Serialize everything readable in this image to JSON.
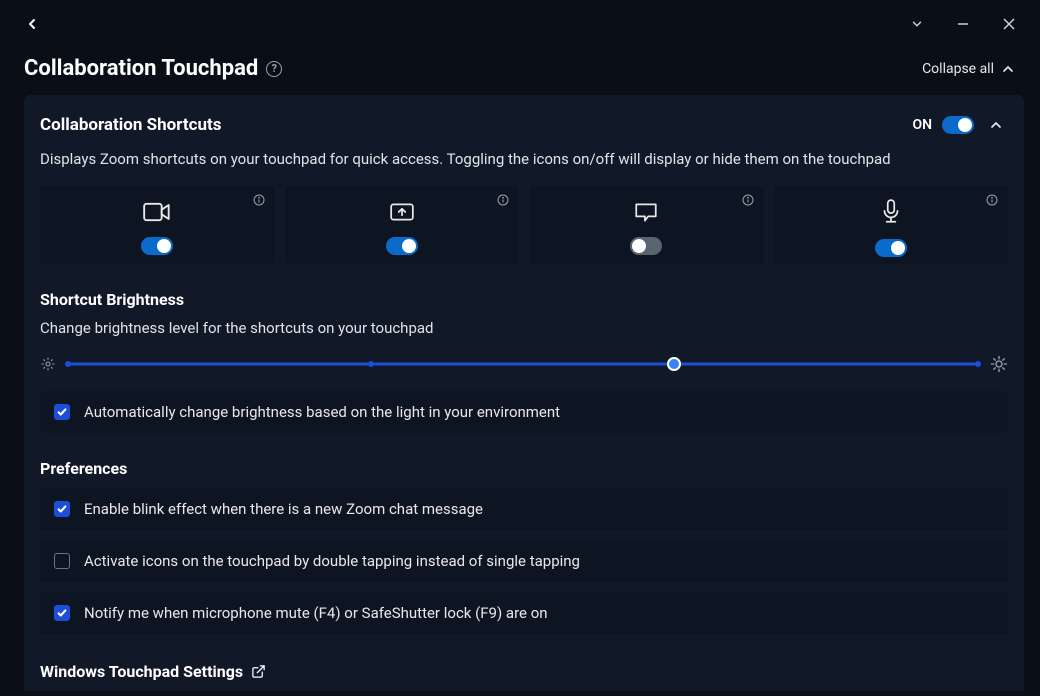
{
  "header": {
    "title": "Collaboration Touchpad",
    "collapse_all": "Collapse all"
  },
  "shortcuts_section": {
    "title": "Collaboration Shortcuts",
    "state_label": "ON",
    "toggle_on": true,
    "description": "Displays Zoom shortcuts on your touchpad for quick access. Toggling the icons on/off will display or hide them on the touchpad",
    "cards": [
      {
        "icon": "camera-icon",
        "on": true
      },
      {
        "icon": "share-screen-icon",
        "on": true
      },
      {
        "icon": "chat-icon",
        "on": false
      },
      {
        "icon": "microphone-icon",
        "on": true
      }
    ]
  },
  "brightness": {
    "title": "Shortcut Brightness",
    "description": "Change brightness level for the shortcuts on your touchpad",
    "ticks_percent": [
      0,
      33.3,
      66.6,
      100
    ],
    "value_percent": 66.6,
    "auto_label": "Automatically change brightness based on the light in your environment",
    "auto_checked": true
  },
  "preferences": {
    "title": "Preferences",
    "items": [
      {
        "label": "Enable blink effect when there is a new Zoom chat message",
        "checked": true
      },
      {
        "label": "Activate icons on the touchpad by double tapping instead of single tapping",
        "checked": false
      },
      {
        "label": "Notify me when microphone mute (F4) or SafeShutter lock (F9) are on",
        "checked": true
      }
    ]
  },
  "external": {
    "label": "Windows Touchpad Settings"
  },
  "colors": {
    "bg": "#0a0e17",
    "panel": "#111827",
    "card": "#0e1522",
    "accent": "#1d4ed8",
    "toggle_on": "#0b6bcb",
    "text": "#e8e8e8",
    "muted": "#9aa3ad"
  }
}
